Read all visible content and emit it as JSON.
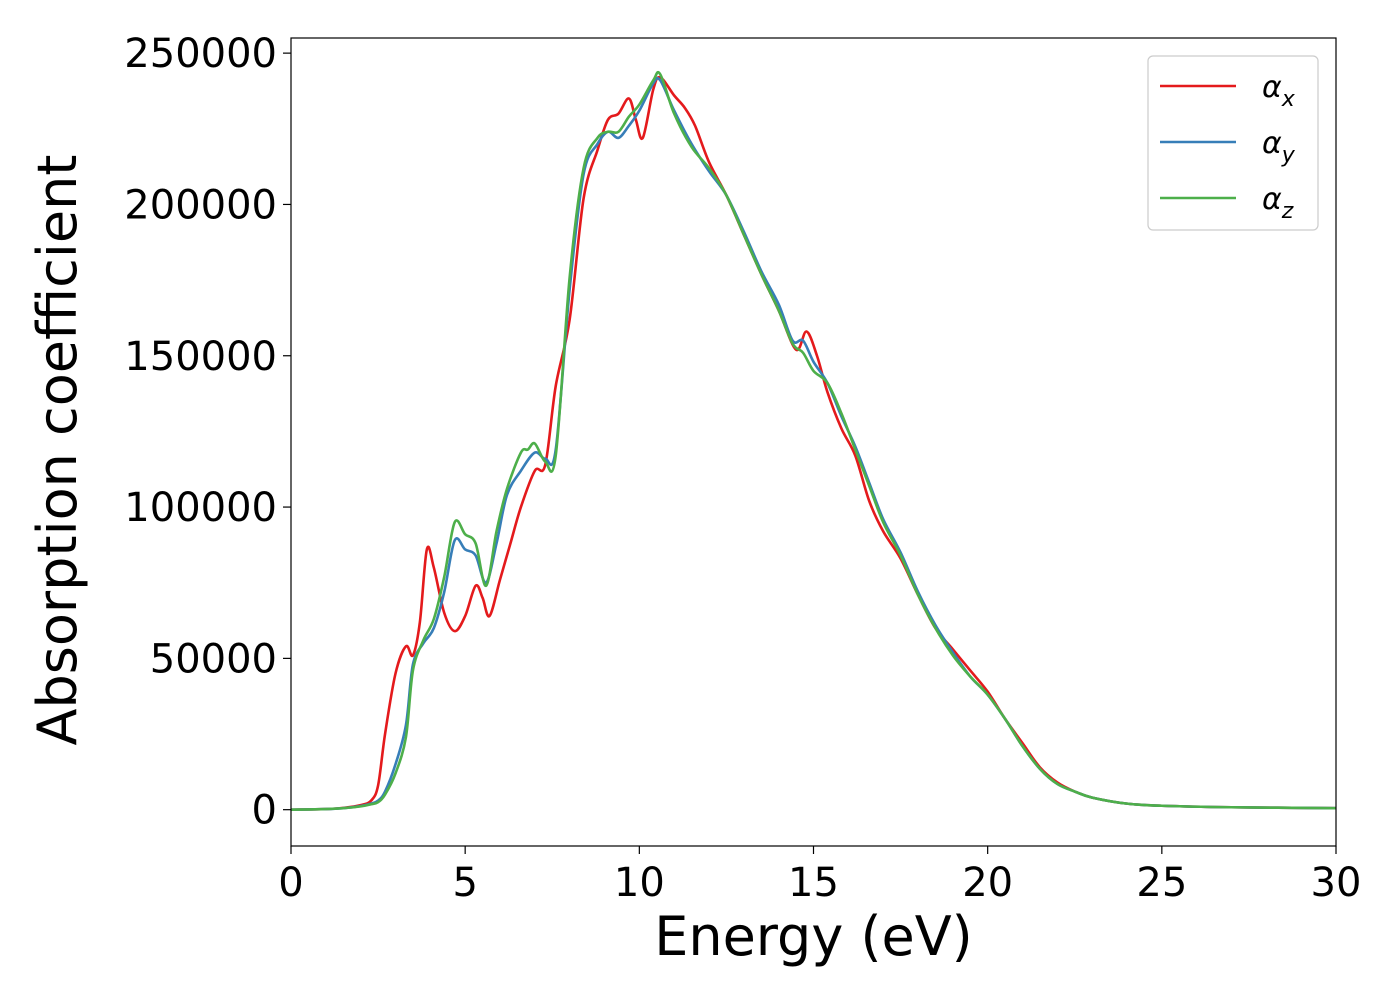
{
  "chart_data": {
    "type": "line",
    "title": "",
    "xlabel": "Energy (eV)",
    "ylabel": "Absorption coefficient",
    "xlim": [
      0,
      30
    ],
    "ylim": [
      -12000,
      255000
    ],
    "xticks": [
      0,
      5,
      10,
      15,
      20,
      25,
      30
    ],
    "yticks": [
      0,
      50000,
      100000,
      150000,
      200000,
      250000
    ],
    "xtick_labels": [
      "0",
      "5",
      "10",
      "15",
      "20",
      "25",
      "30"
    ],
    "ytick_labels": [
      "0",
      "50000",
      "100000",
      "150000",
      "200000",
      "250000"
    ],
    "grid": false,
    "legend_position": "top-right",
    "series": [
      {
        "name": "αx",
        "legend_base": "α",
        "legend_sub": "x",
        "color": "#e41a1c",
        "x": [
          0,
          1,
          1.5,
          2,
          2.3,
          2.5,
          2.7,
          3.0,
          3.3,
          3.5,
          3.7,
          3.9,
          4.1,
          4.4,
          4.7,
          5.0,
          5.3,
          5.5,
          5.7,
          6.0,
          6.3,
          6.6,
          7.0,
          7.3,
          7.6,
          8.0,
          8.4,
          8.8,
          9.1,
          9.4,
          9.7,
          9.9,
          10.1,
          10.4,
          10.6,
          11.0,
          11.3,
          11.6,
          12.0,
          12.5,
          13.0,
          13.5,
          14.0,
          14.5,
          14.8,
          15.1,
          15.4,
          15.8,
          16.2,
          16.6,
          17.0,
          17.5,
          18.0,
          18.5,
          19.0,
          19.5,
          20.0,
          20.5,
          21.0,
          21.5,
          22.0,
          22.5,
          23.0,
          24.0,
          25.0,
          27.0,
          30.0
        ],
        "y": [
          0,
          200,
          600,
          1500,
          3000,
          8000,
          25000,
          45000,
          54000,
          51000,
          62000,
          86000,
          80000,
          65000,
          59000,
          64000,
          74000,
          70000,
          64000,
          76000,
          88000,
          100000,
          112000,
          114000,
          140000,
          162000,
          202000,
          218000,
          228000,
          230000,
          235000,
          228000,
          222000,
          238000,
          242000,
          236000,
          232000,
          226000,
          214000,
          203000,
          190000,
          177000,
          165000,
          152000,
          158000,
          150000,
          138000,
          126000,
          117000,
          102000,
          92000,
          83000,
          71000,
          60000,
          53000,
          46000,
          39000,
          30000,
          22000,
          14000,
          9000,
          6000,
          4000,
          2000,
          1300,
          800,
          500
        ]
      },
      {
        "name": "αy",
        "legend_base": "α",
        "legend_sub": "y",
        "color": "#377eb8",
        "x": [
          0,
          1,
          1.5,
          2,
          2.3,
          2.5,
          2.7,
          3.0,
          3.3,
          3.5,
          3.8,
          4.1,
          4.4,
          4.7,
          5.0,
          5.3,
          5.6,
          5.9,
          6.2,
          6.6,
          7.0,
          7.3,
          7.6,
          8.0,
          8.4,
          8.8,
          9.1,
          9.4,
          9.7,
          10.0,
          10.4,
          10.6,
          11.0,
          11.5,
          12.0,
          12.5,
          13.0,
          13.5,
          14.0,
          14.4,
          14.7,
          15.0,
          15.4,
          15.8,
          16.2,
          16.6,
          17.0,
          17.5,
          18.0,
          18.5,
          19.0,
          19.5,
          20.0,
          20.5,
          21.0,
          21.5,
          22.0,
          22.5,
          23.0,
          24.0,
          25.0,
          27.0,
          30.0
        ],
        "y": [
          0,
          200,
          500,
          1200,
          2000,
          3000,
          6000,
          15000,
          28000,
          48000,
          55000,
          60000,
          72000,
          89000,
          86000,
          84000,
          75000,
          88000,
          104000,
          112000,
          118000,
          116000,
          119000,
          172000,
          210000,
          220000,
          224000,
          222000,
          226000,
          231000,
          240000,
          241000,
          231000,
          220000,
          211000,
          203000,
          191000,
          178000,
          167000,
          155000,
          155000,
          148000,
          141000,
          130000,
          120000,
          108000,
          96000,
          85000,
          72000,
          61000,
          52000,
          44000,
          38000,
          30000,
          21000,
          13500,
          8500,
          6000,
          4000,
          2000,
          1300,
          800,
          500
        ]
      },
      {
        "name": "αz",
        "legend_base": "α",
        "legend_sub": "z",
        "color": "#4daf4a",
        "x": [
          0,
          1,
          1.5,
          2,
          2.3,
          2.5,
          2.7,
          3.0,
          3.3,
          3.5,
          3.8,
          4.1,
          4.4,
          4.7,
          5.0,
          5.3,
          5.6,
          5.9,
          6.2,
          6.6,
          6.8,
          7.0,
          7.3,
          7.6,
          8.0,
          8.4,
          8.8,
          9.1,
          9.4,
          9.7,
          10.0,
          10.4,
          10.6,
          11.0,
          11.5,
          12.0,
          12.5,
          13.0,
          13.5,
          14.0,
          14.4,
          14.7,
          15.0,
          15.4,
          15.8,
          16.2,
          16.6,
          17.0,
          17.5,
          18.0,
          18.5,
          19.0,
          19.5,
          20.0,
          20.5,
          21.0,
          21.5,
          22.0,
          22.5,
          23.0,
          24.0,
          25.0,
          27.0,
          30.0
        ],
        "y": [
          0,
          200,
          500,
          1100,
          1800,
          2500,
          5000,
          12000,
          24000,
          46000,
          56000,
          63000,
          77000,
          95000,
          91000,
          88000,
          74000,
          92000,
          106000,
          118000,
          119000,
          121000,
          115000,
          117000,
          176000,
          212000,
          222000,
          224000,
          224000,
          229000,
          233000,
          241000,
          243000,
          230000,
          219000,
          212000,
          203000,
          190000,
          177000,
          165000,
          154000,
          151000,
          145000,
          141000,
          131000,
          119000,
          107000,
          95000,
          84000,
          71000,
          60000,
          51000,
          44000,
          38000,
          30000,
          21000,
          13500,
          8500,
          6000,
          4000,
          2000,
          1300,
          800,
          500
        ]
      }
    ]
  }
}
